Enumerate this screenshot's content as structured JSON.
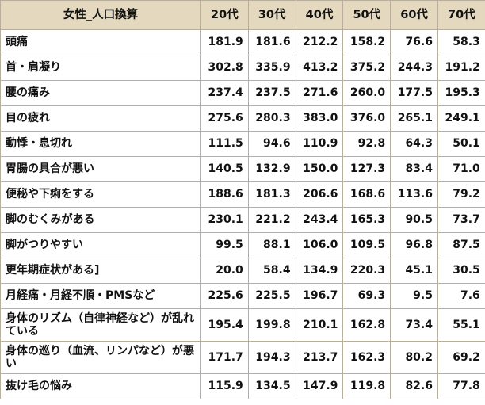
{
  "table": {
    "headers": [
      "女性_人口換算",
      "20代",
      "30代",
      "40代",
      "50代",
      "60代",
      "70代"
    ],
    "rows": [
      {
        "label": "頭痛",
        "values": [
          "181.9",
          "181.6",
          "212.2",
          "158.2",
          "76.6",
          "58.3"
        ]
      },
      {
        "label": "首・肩凝り",
        "values": [
          "302.8",
          "335.9",
          "413.2",
          "375.2",
          "244.3",
          "191.2"
        ]
      },
      {
        "label": "腰の痛み",
        "values": [
          "237.4",
          "237.5",
          "271.6",
          "260.0",
          "177.5",
          "195.3"
        ]
      },
      {
        "label": "目の疲れ",
        "values": [
          "275.6",
          "280.3",
          "383.0",
          "376.0",
          "265.1",
          "249.1"
        ]
      },
      {
        "label": "動悸・息切れ",
        "values": [
          "111.5",
          "94.6",
          "110.9",
          "92.8",
          "64.3",
          "50.1"
        ]
      },
      {
        "label": "胃腸の具合が悪い",
        "values": [
          "140.5",
          "132.9",
          "150.0",
          "127.3",
          "83.4",
          "71.0"
        ]
      },
      {
        "label": "便秘や下痢をする",
        "values": [
          "188.6",
          "181.3",
          "206.6",
          "168.6",
          "113.6",
          "79.2"
        ]
      },
      {
        "label": "脚のむくみがある",
        "values": [
          "230.1",
          "221.2",
          "243.4",
          "165.3",
          "90.5",
          "73.7"
        ]
      },
      {
        "label": "脚がつりやすい",
        "values": [
          "99.5",
          "88.1",
          "106.0",
          "109.5",
          "96.8",
          "87.5"
        ]
      },
      {
        "label": "更年期症状がある]",
        "values": [
          "20.0",
          "58.4",
          "134.9",
          "220.3",
          "45.1",
          "30.5"
        ]
      },
      {
        "label": "月経痛・月経不順・PMSなど",
        "values": [
          "225.6",
          "225.5",
          "196.7",
          "69.3",
          "9.5",
          "7.6"
        ]
      },
      {
        "label": "身体のリズム（自律神経など）が乱れている",
        "values": [
          "195.4",
          "199.8",
          "210.1",
          "162.8",
          "73.4",
          "55.1"
        ]
      },
      {
        "label": "身体の巡り（血流、リンパなど）が悪い",
        "values": [
          "171.7",
          "194.3",
          "213.7",
          "162.3",
          "80.2",
          "69.2"
        ]
      },
      {
        "label": "抜け毛の悩み",
        "values": [
          "115.9",
          "134.5",
          "147.9",
          "119.8",
          "82.6",
          "77.8"
        ]
      }
    ]
  }
}
